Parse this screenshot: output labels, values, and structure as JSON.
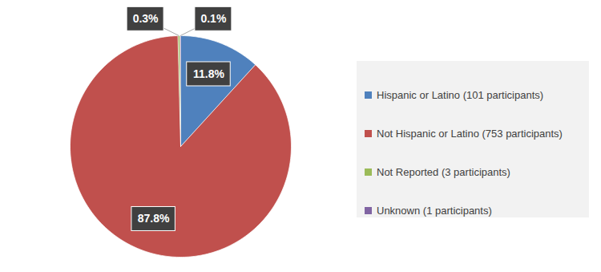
{
  "chart_data": {
    "type": "pie",
    "categories": [
      "Hispanic or Latino (101 participants)",
      "Not Hispanic or Latino (753 participants)",
      "Not Reported (3 participants)",
      "Unknown (1 participants)"
    ],
    "values": [
      11.8,
      87.8,
      0.3,
      0.1
    ],
    "value_labels": [
      "11.8%",
      "87.8%",
      "0.3%",
      "0.1%"
    ],
    "colors": [
      "#4f81bd",
      "#c0504d",
      "#9bbb59",
      "#8064a2"
    ],
    "data_labels": true,
    "legend": "right"
  }
}
